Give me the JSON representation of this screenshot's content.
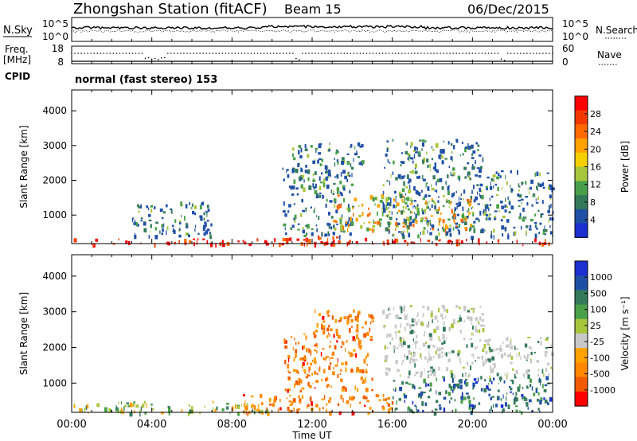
{
  "header": {
    "station": "Zhongshan Station (fitACF)",
    "beam": "Beam 15",
    "date": "06/Dec/2015"
  },
  "panel_nsky": {
    "left_label": "N.Sky",
    "left_ticks": [
      "10^5",
      "10^0"
    ],
    "right_ticks": [
      "10^5",
      "10^0"
    ],
    "right_label": "N.Search"
  },
  "panel_freq": {
    "left_label_1": "Freq.",
    "left_label_2": "[MHz]",
    "left_ticks": [
      "18",
      "8"
    ],
    "right_ticks": [
      "60",
      "0"
    ],
    "right_label": "Nave",
    "cpid_label": "CPID",
    "cpid_text": "normal (fast stereo) 153"
  },
  "chart_data": [
    {
      "type": "heatmap",
      "name": "power",
      "ylabel": "Slant Range [km]",
      "yticks": [
        1000,
        2000,
        3000,
        4000
      ],
      "ylim": [
        180,
        4600
      ],
      "xlim": [
        0,
        24
      ],
      "xticks": [
        0,
        4,
        8,
        12,
        16,
        20,
        24
      ],
      "xtick_labels": [
        "00:00",
        "04:00",
        "08:00",
        "12:00",
        "16:00",
        "20:00",
        "00:00"
      ],
      "colorbar_label": "Power [dB]",
      "colorbar_ticks": [
        "28",
        "24",
        "20",
        "16",
        "12",
        "8",
        "4"
      ],
      "colorbar_colors": [
        "#ff0000",
        "#f23a00",
        "#ff6a00",
        "#ffa200",
        "#f5d000",
        "#a8c63c",
        "#4aa04a",
        "#347a5a",
        "#2050a6",
        "#1c2fd0"
      ],
      "regions": [
        {
          "t0": 0.0,
          "t1": 24.0,
          "r0": 180,
          "r1": 350,
          "level": "strong"
        },
        {
          "t0": 10.0,
          "t1": 13.8,
          "r0": 180,
          "r1": 420,
          "level": "strong"
        },
        {
          "t0": 3.0,
          "t1": 7.0,
          "r0": 400,
          "r1": 1400,
          "level": "weak"
        },
        {
          "t0": 10.5,
          "t1": 14.0,
          "r0": 400,
          "r1": 2400,
          "level": "weak"
        },
        {
          "t0": 11.0,
          "t1": 14.5,
          "r0": 2400,
          "r1": 3100,
          "level": "weak"
        },
        {
          "t0": 13.0,
          "t1": 17.0,
          "r0": 600,
          "r1": 1600,
          "level": "mid"
        },
        {
          "t0": 15.5,
          "t1": 20.5,
          "r0": 400,
          "r1": 3200,
          "level": "weak"
        },
        {
          "t0": 17.0,
          "t1": 20.0,
          "r0": 600,
          "r1": 1500,
          "level": "mid"
        },
        {
          "t0": 20.5,
          "t1": 24.0,
          "r0": 400,
          "r1": 2300,
          "level": "weak"
        }
      ]
    },
    {
      "type": "heatmap",
      "name": "velocity",
      "ylabel": "Slant Range [km]",
      "yticks": [
        1000,
        2000,
        3000,
        4000
      ],
      "ylim": [
        180,
        4600
      ],
      "xlim": [
        0,
        24
      ],
      "xticks": [
        0,
        4,
        8,
        12,
        16,
        20,
        24
      ],
      "xtick_labels": [
        "00:00",
        "04:00",
        "08:00",
        "12:00",
        "16:00",
        "20:00",
        "00:00"
      ],
      "xlabel": "Time UT",
      "colorbar_label": "Velocity [m s⁻¹]",
      "colorbar_ticks": [
        "1000",
        "500",
        "100",
        "25",
        "-25",
        "-100",
        "-500",
        "-1000"
      ],
      "colorbar_colors": [
        "#1c2fd0",
        "#2050a6",
        "#347a5a",
        "#4aa04a",
        "#a8c63c",
        "#c8c8c8",
        "#ffa200",
        "#ff8800",
        "#f25a00",
        "#ff0000"
      ],
      "regions": [
        {
          "t0": 0.0,
          "t1": 10.0,
          "r0": 180,
          "r1": 500,
          "level": "ground"
        },
        {
          "t0": 8.5,
          "t1": 16.0,
          "r0": 180,
          "r1": 700,
          "level": "neg"
        },
        {
          "t0": 10.5,
          "t1": 15.0,
          "r0": 800,
          "r1": 2400,
          "level": "neg"
        },
        {
          "t0": 12.0,
          "t1": 15.0,
          "r0": 2400,
          "r1": 3100,
          "level": "neg"
        },
        {
          "t0": 15.5,
          "t1": 20.5,
          "r0": 1200,
          "r1": 3200,
          "level": "zero"
        },
        {
          "t0": 16.0,
          "t1": 24.0,
          "r0": 200,
          "r1": 1200,
          "level": "pos"
        },
        {
          "t0": 20.5,
          "t1": 24.0,
          "r0": 1200,
          "r1": 2300,
          "level": "zero"
        }
      ]
    }
  ]
}
